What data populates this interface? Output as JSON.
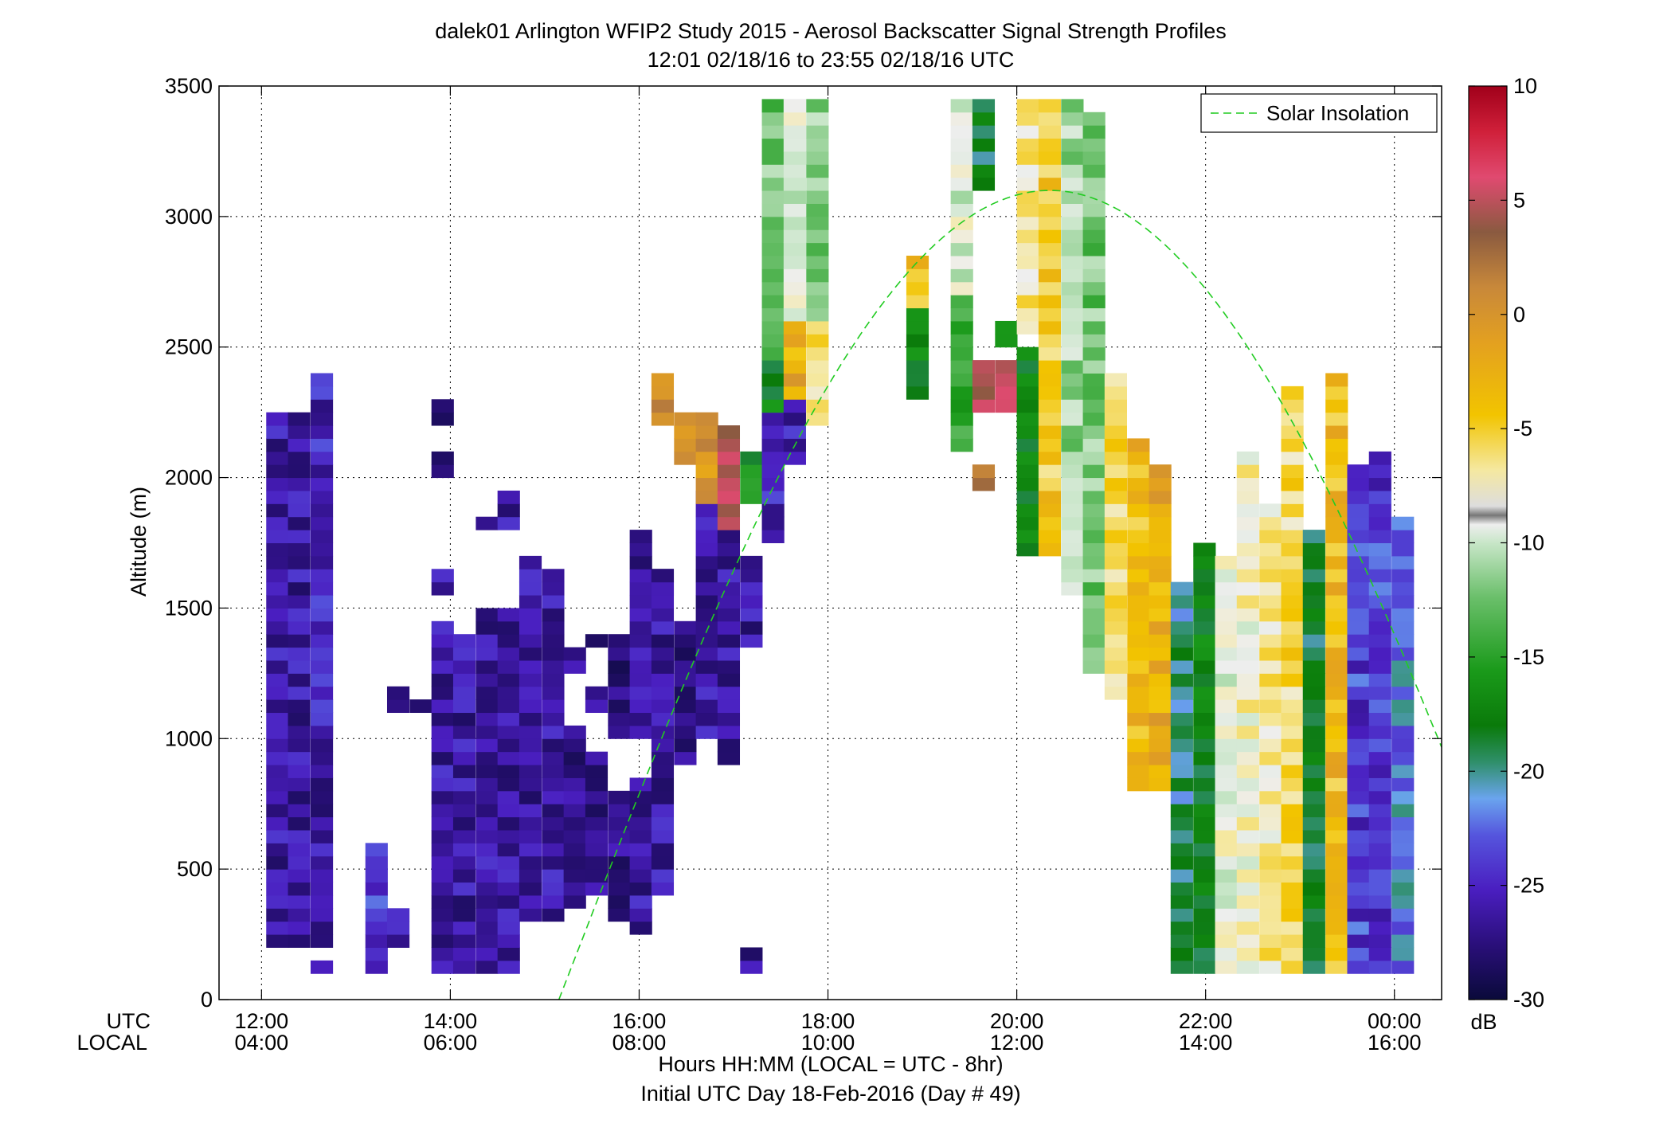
{
  "chart_data": {
    "type": "heatmap",
    "title": "dalek01 Arlington WFIP2 Study 2015 - Aerosol Backscatter Signal Strength Profiles",
    "subtitle": "12:01 02/18/16 to 23:55 02/18/16  UTC",
    "ylabel": "Altitude (m)",
    "xlabel_line1": "Hours HH:MM  (LOCAL = UTC - 8hr)",
    "xlabel_line2": "Initial UTC Day 18-Feb-2016 (Day # 49)",
    "x_row_labels": [
      "UTC",
      "LOCAL"
    ],
    "x_ticks_utc": [
      "12:00",
      "14:00",
      "16:00",
      "18:00",
      "20:00",
      "22:00",
      "00:00"
    ],
    "x_ticks_local": [
      "04:00",
      "06:00",
      "08:00",
      "10:00",
      "12:00",
      "14:00",
      "16:00"
    ],
    "x_tick_hours": [
      12,
      14,
      16,
      18,
      20,
      22,
      24
    ],
    "xlim_hours": [
      11.55,
      24.5
    ],
    "y_ticks": [
      0,
      500,
      1000,
      1500,
      2000,
      2500,
      3000,
      3500
    ],
    "ylim": [
      0,
      3500
    ],
    "grid": true,
    "legend": {
      "label": "Solar Insolation",
      "position": "top-right",
      "color": "#22cc22"
    },
    "colorbar": {
      "unit": "dB",
      "range": [
        -30,
        10
      ],
      "ticks": [
        "10",
        "5",
        "0",
        "-5",
        "-10",
        "-15",
        "-20",
        "-25",
        "-30"
      ],
      "tick_values": [
        10,
        5,
        0,
        -5,
        -10,
        -15,
        -20,
        -25,
        -30
      ]
    },
    "solar_curve": {
      "start_hour": 15.15,
      "end_hour": 24.5,
      "peak_hour": 20.35,
      "peak_altitude_m": 3100
    },
    "bin_width_hours": 0.2333,
    "bin_height_m": 50,
    "cell_columns": [
      {
        "x": 12.05,
        "segments": [
          [
            200,
            2250,
            -26
          ]
        ]
      },
      {
        "x": 12.28,
        "segments": [
          [
            200,
            2250,
            -26
          ]
        ]
      },
      {
        "x": 12.52,
        "segments": [
          [
            200,
            1150,
            -26
          ],
          [
            1000,
            2400,
            -25
          ]
        ]
      },
      {
        "x": 12.52,
        "segments": [
          [
            100,
            150,
            -27
          ]
        ]
      },
      {
        "x": 13.1,
        "segments": [
          [
            100,
            600,
            -24
          ]
        ]
      },
      {
        "x": 13.33,
        "segments": [
          [
            200,
            350,
            -25
          ],
          [
            1100,
            1200,
            -26
          ]
        ]
      },
      {
        "x": 13.57,
        "segments": [
          [
            1100,
            1150,
            -26
          ]
        ]
      },
      {
        "x": 13.8,
        "segments": [
          [
            100,
            1450,
            -26
          ],
          [
            1550,
            1650,
            -26
          ],
          [
            2000,
            2100,
            -27
          ],
          [
            2200,
            2300,
            -27
          ]
        ]
      },
      {
        "x": 14.03,
        "segments": [
          [
            100,
            1400,
            -26
          ]
        ]
      },
      {
        "x": 14.27,
        "segments": [
          [
            100,
            1500,
            -26
          ],
          [
            1800,
            1850,
            -26
          ]
        ]
      },
      {
        "x": 14.5,
        "segments": [
          [
            100,
            1500,
            -26
          ],
          [
            1800,
            1950,
            -26
          ]
        ]
      },
      {
        "x": 14.73,
        "segments": [
          [
            300,
            1700,
            -26
          ]
        ]
      },
      {
        "x": 14.97,
        "segments": [
          [
            300,
            1650,
            -26
          ]
        ]
      },
      {
        "x": 15.2,
        "segments": [
          [
            350,
            1050,
            -27
          ],
          [
            1250,
            1350,
            -27
          ]
        ]
      },
      {
        "x": 15.43,
        "segments": [
          [
            400,
            950,
            -27
          ],
          [
            1100,
            1200,
            -27
          ],
          [
            1350,
            1400,
            -27
          ]
        ]
      },
      {
        "x": 15.67,
        "segments": [
          [
            300,
            800,
            -27
          ],
          [
            1000,
            1400,
            -27
          ]
        ]
      },
      {
        "x": 15.9,
        "segments": [
          [
            250,
            850,
            -26
          ],
          [
            1000,
            1800,
            -26
          ]
        ]
      },
      {
        "x": 16.13,
        "segments": [
          [
            400,
            1650,
            -26
          ],
          [
            1550,
            1650,
            -26
          ],
          [
            2200,
            2400,
            -2
          ]
        ]
      },
      {
        "x": 16.37,
        "segments": [
          [
            900,
            1450,
            -27
          ],
          [
            2050,
            2250,
            -3
          ]
        ]
      },
      {
        "x": 16.6,
        "segments": [
          [
            1000,
            1950,
            -26
          ],
          [
            1900,
            2250,
            -2
          ]
        ]
      },
      {
        "x": 16.83,
        "segments": [
          [
            900,
            1800,
            -26
          ],
          [
            1800,
            2200,
            4
          ]
        ]
      },
      {
        "x": 17.07,
        "segments": [
          [
            100,
            200,
            -26
          ],
          [
            1350,
            1700,
            -26
          ],
          [
            1900,
            2100,
            -17
          ]
        ]
      },
      {
        "x": 17.3,
        "segments": [
          [
            1750,
            2400,
            -25
          ],
          [
            2250,
            2450,
            -18
          ],
          [
            2450,
            3450,
            -13
          ]
        ]
      },
      {
        "x": 17.53,
        "segments": [
          [
            2050,
            2300,
            -25
          ],
          [
            2300,
            2600,
            -4
          ],
          [
            2600,
            3450,
            -10
          ]
        ]
      },
      {
        "x": 17.77,
        "segments": [
          [
            2200,
            2600,
            -7
          ],
          [
            2600,
            3450,
            -13
          ]
        ]
      },
      {
        "x": 18.83,
        "segments": [
          [
            2300,
            2650,
            -17
          ],
          [
            2650,
            2850,
            -5
          ]
        ]
      },
      {
        "x": 19.3,
        "segments": [
          [
            2100,
            2700,
            -15
          ],
          [
            2700,
            3450,
            -10
          ]
        ]
      },
      {
        "x": 19.53,
        "segments": [
          [
            1950,
            2050,
            1
          ],
          [
            2250,
            2450,
            3
          ],
          [
            3100,
            3450,
            -19
          ]
        ]
      },
      {
        "x": 19.77,
        "segments": [
          [
            2250,
            2450,
            5
          ],
          [
            2500,
            2600,
            -15
          ]
        ]
      },
      {
        "x": 20.0,
        "segments": [
          [
            2550,
            3450,
            -8
          ],
          [
            1700,
            2500,
            -18
          ]
        ]
      },
      {
        "x": 20.23,
        "segments": [
          [
            1700,
            3450,
            -6
          ]
        ]
      },
      {
        "x": 20.47,
        "segments": [
          [
            1550,
            3450,
            -12
          ]
        ]
      },
      {
        "x": 20.7,
        "segments": [
          [
            1250,
            3400,
            -13
          ]
        ]
      },
      {
        "x": 20.93,
        "segments": [
          [
            1150,
            2400,
            -7
          ]
        ]
      },
      {
        "x": 21.17,
        "segments": [
          [
            800,
            2150,
            -5
          ]
        ]
      },
      {
        "x": 21.4,
        "segments": [
          [
            800,
            2050,
            -4
          ]
        ]
      },
      {
        "x": 21.63,
        "segments": [
          [
            100,
            1600,
            -20
          ]
        ]
      },
      {
        "x": 21.87,
        "segments": [
          [
            100,
            1750,
            -18
          ]
        ]
      },
      {
        "x": 22.1,
        "segments": [
          [
            100,
            1700,
            -10
          ]
        ]
      },
      {
        "x": 22.33,
        "segments": [
          [
            100,
            2100,
            -9
          ]
        ]
      },
      {
        "x": 22.57,
        "segments": [
          [
            100,
            1900,
            -8
          ]
        ]
      },
      {
        "x": 22.8,
        "segments": [
          [
            100,
            2350,
            -7
          ]
        ]
      },
      {
        "x": 23.03,
        "segments": [
          [
            100,
            1800,
            -19
          ]
        ]
      },
      {
        "x": 23.27,
        "segments": [
          [
            100,
            2400,
            -5
          ]
        ]
      },
      {
        "x": 23.5,
        "segments": [
          [
            100,
            2050,
            -24
          ]
        ]
      },
      {
        "x": 23.73,
        "segments": [
          [
            100,
            2100,
            -24
          ]
        ]
      },
      {
        "x": 23.97,
        "segments": [
          [
            100,
            1850,
            -22
          ]
        ]
      }
    ]
  }
}
